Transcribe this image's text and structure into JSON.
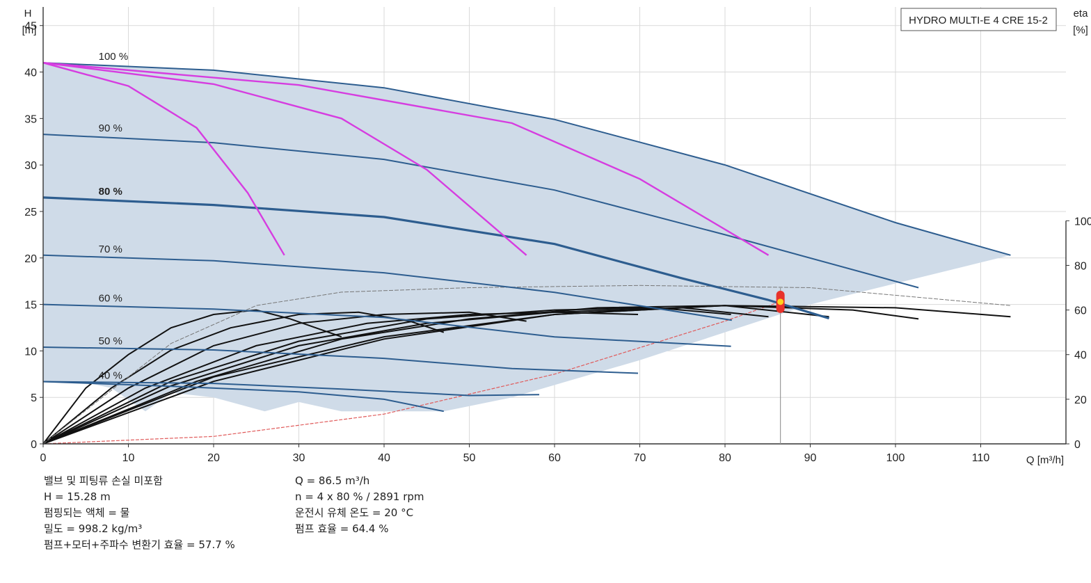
{
  "chart_data": {
    "type": "line",
    "title": "HYDRO MULTI-E 4 CRE 15-2",
    "xlabel": "Q [m³/h]",
    "ylabel_top": "H",
    "ylabel_unit": "[m]",
    "y2label_top": "eta",
    "y2label_unit": "[%]",
    "xlim": [
      0,
      120
    ],
    "ylim": [
      0,
      47
    ],
    "y2lim": [
      0,
      100
    ],
    "x_ticks": [
      0,
      10,
      20,
      30,
      40,
      50,
      60,
      70,
      80,
      90,
      100,
      110
    ],
    "y_ticks": [
      0,
      5,
      10,
      15,
      20,
      25,
      30,
      35,
      40,
      45
    ],
    "y2_ticks": [
      0,
      20,
      40,
      60,
      80,
      100
    ],
    "grid": true,
    "operating_envelope": {
      "upper": [
        [
          0,
          41
        ],
        [
          20,
          40.2
        ],
        [
          40,
          38.3
        ],
        [
          60,
          34.9
        ],
        [
          80,
          30
        ],
        [
          100,
          23.8
        ],
        [
          113.5,
          20.3
        ]
      ],
      "lower": [
        [
          113.5,
          20.3
        ],
        [
          90,
          15
        ],
        [
          70,
          9
        ],
        [
          55,
          5
        ],
        [
          47,
          3.5
        ],
        [
          35,
          3.5
        ],
        [
          30,
          4.5
        ],
        [
          26,
          3.5
        ],
        [
          20,
          5
        ],
        [
          15,
          5.5
        ],
        [
          12,
          3.5
        ],
        [
          8,
          6
        ],
        [
          5,
          6.6
        ],
        [
          0,
          6.6
        ]
      ]
    },
    "speed_curves": [
      {
        "name": "100 %",
        "points": [
          [
            0,
            41
          ],
          [
            20,
            40.2
          ],
          [
            40,
            38.3
          ],
          [
            60,
            34.9
          ],
          [
            80,
            30
          ],
          [
            100,
            23.8
          ],
          [
            113.5,
            20.3
          ]
        ]
      },
      {
        "name": "90 %",
        "points": [
          [
            0,
            33.3
          ],
          [
            20,
            32.4
          ],
          [
            40,
            30.6
          ],
          [
            60,
            27.3
          ],
          [
            80,
            22.5
          ],
          [
            102.7,
            16.8
          ]
        ]
      },
      {
        "name": "80 %",
        "points": [
          [
            0,
            26.5
          ],
          [
            20,
            25.7
          ],
          [
            40,
            24.4
          ],
          [
            60,
            21.5
          ],
          [
            75,
            17.8
          ],
          [
            85,
            15.5
          ],
          [
            92.2,
            13.5
          ]
        ]
      },
      {
        "name": "70 %",
        "points": [
          [
            0,
            20.3
          ],
          [
            20,
            19.7
          ],
          [
            40,
            18.4
          ],
          [
            60,
            16.3
          ],
          [
            80.8,
            13.3
          ]
        ]
      },
      {
        "name": "60 %",
        "points": [
          [
            0,
            15
          ],
          [
            20,
            14.5
          ],
          [
            40,
            13.6
          ],
          [
            60,
            11.5
          ],
          [
            80.7,
            10.5
          ]
        ]
      },
      {
        "name": "50 %",
        "points": [
          [
            0,
            10.4
          ],
          [
            20,
            10.1
          ],
          [
            40,
            9.2
          ],
          [
            55,
            8.1
          ],
          [
            69.8,
            7.6
          ]
        ]
      },
      {
        "name": "40 %",
        "points": [
          [
            0,
            6.7
          ],
          [
            20,
            6.5
          ],
          [
            35,
            5.9
          ],
          [
            50,
            5.2
          ],
          [
            58.2,
            5.3
          ]
        ]
      },
      {
        "name": "",
        "points": [
          [
            0,
            6.7
          ],
          [
            15,
            6.2
          ],
          [
            30,
            5.6
          ],
          [
            40,
            4.8
          ],
          [
            47,
            3.5
          ]
        ]
      }
    ],
    "pipe_curves": [
      {
        "points": [
          [
            0,
            41
          ],
          [
            10,
            38.5
          ],
          [
            18,
            34
          ],
          [
            24,
            27
          ],
          [
            28.3,
            20.3
          ]
        ]
      },
      {
        "points": [
          [
            0,
            41
          ],
          [
            20,
            38.7
          ],
          [
            35,
            35
          ],
          [
            45,
            29.5
          ],
          [
            56.7,
            20.3
          ]
        ]
      },
      {
        "points": [
          [
            0,
            41
          ],
          [
            30,
            38.6
          ],
          [
            55,
            34.5
          ],
          [
            70,
            28.5
          ],
          [
            85.1,
            20.3
          ]
        ]
      }
    ],
    "efficiency_curves": [
      {
        "points": [
          [
            0,
            0
          ],
          [
            5,
            25
          ],
          [
            10,
            40
          ],
          [
            15,
            52
          ],
          [
            20,
            58
          ],
          [
            25,
            60
          ],
          [
            29,
            56
          ],
          [
            35,
            48
          ]
        ]
      },
      {
        "points": [
          [
            0,
            0
          ],
          [
            8,
            25
          ],
          [
            15,
            42
          ],
          [
            22,
            52
          ],
          [
            30,
            58
          ],
          [
            37,
            59
          ],
          [
            43,
            55
          ],
          [
            47,
            50
          ]
        ]
      },
      {
        "points": [
          [
            0,
            0
          ],
          [
            10,
            25
          ],
          [
            20,
            44
          ],
          [
            30,
            54
          ],
          [
            40,
            58
          ],
          [
            50,
            59
          ],
          [
            56.7,
            55
          ]
        ]
      },
      {
        "points": [
          [
            0,
            0
          ],
          [
            12,
            25
          ],
          [
            25,
            44
          ],
          [
            38,
            54
          ],
          [
            50,
            58
          ],
          [
            60,
            59
          ],
          [
            69.8,
            58
          ]
        ]
      },
      {
        "points": [
          [
            0,
            0
          ],
          [
            15,
            28
          ],
          [
            30,
            46
          ],
          [
            45,
            56
          ],
          [
            60,
            60
          ],
          [
            72,
            61
          ],
          [
            80.7,
            58
          ]
        ]
      },
      {
        "points": [
          [
            0,
            0
          ],
          [
            15,
            26
          ],
          [
            30,
            44
          ],
          [
            45,
            54
          ],
          [
            60,
            59
          ],
          [
            75,
            61
          ],
          [
            85.1,
            57
          ]
        ]
      },
      {
        "points": [
          [
            0,
            0
          ],
          [
            18,
            28
          ],
          [
            35,
            47
          ],
          [
            50,
            56
          ],
          [
            65,
            61
          ],
          [
            80,
            62
          ],
          [
            92.2,
            57
          ]
        ]
      },
      {
        "points": [
          [
            0,
            0
          ],
          [
            20,
            30
          ],
          [
            40,
            48
          ],
          [
            60,
            58
          ],
          [
            80,
            62
          ],
          [
            95,
            60
          ],
          [
            102.7,
            56
          ]
        ]
      },
      {
        "points": [
          [
            0,
            0
          ],
          [
            20,
            28
          ],
          [
            40,
            47
          ],
          [
            60,
            58
          ],
          [
            80,
            62
          ],
          [
            100,
            61
          ],
          [
            113.5,
            57
          ]
        ]
      },
      {
        "points": [
          [
            0,
            0
          ],
          [
            15,
            45
          ],
          [
            25,
            62
          ],
          [
            35,
            68
          ],
          [
            50,
            70
          ],
          [
            70,
            71
          ],
          [
            90,
            70
          ],
          [
            113.5,
            62
          ]
        ]
      }
    ],
    "system_curve": [
      [
        0,
        0
      ],
      [
        20,
        0.8
      ],
      [
        40,
        3.2
      ],
      [
        60,
        7.5
      ],
      [
        80,
        13.2
      ],
      [
        86.5,
        15.3
      ]
    ],
    "duty_point": {
      "q": 86.5,
      "h": 15.28
    },
    "info_left": [
      "밸브 및 피팅류 손실 미포함",
      "H = 15.28 m",
      "펌핑되는 액체 = 물",
      "밀도 = 998.2 kg/m³",
      "펌프+모터+주파수 변환기 효율 = 57.7 %"
    ],
    "info_right": [
      "Q = 86.5 m³/h",
      "n = 4 x 80 % / 2891 rpm",
      "운전시 유체 온도 = 20 °C",
      "펌프 효율 = 64.4 %"
    ]
  },
  "colors": {
    "envelope_fill": "#cfdbe8",
    "speed_curve": "#2d5d8f",
    "pipe_curve": "#d63de0",
    "efficiency_curve": "#111111",
    "system_curve": "#e05a5a",
    "duty_point": "#e8322a",
    "grid": "#d9d9d9",
    "axis": "#333333"
  }
}
